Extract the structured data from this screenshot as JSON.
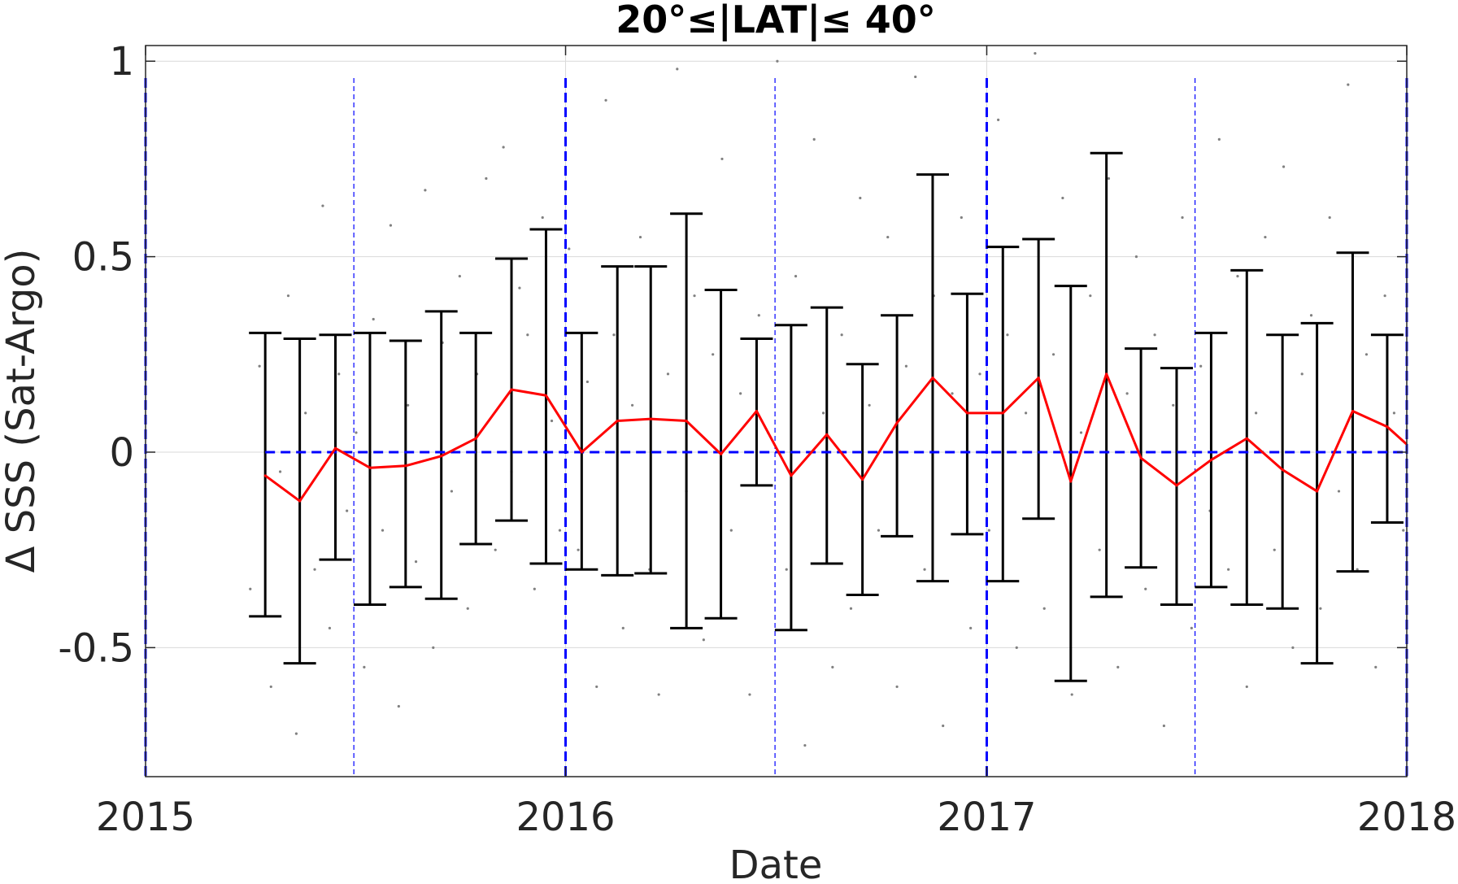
{
  "chart_data": {
    "type": "line",
    "title": "20°≤|LAT|≤ 40°",
    "xlabel": "Date",
    "ylabel": "Δ SSS (Sat-Argo)",
    "xlim": [
      "2015-01-01",
      "2018-01-01"
    ],
    "ylim": [
      -0.83,
      1.04
    ],
    "x_ticks": [
      "2015",
      "2016",
      "2017",
      "2018"
    ],
    "y_ticks": [
      "-0.5",
      "0",
      "0.5",
      "1"
    ],
    "grid": true,
    "colors": {
      "mean_line": "#ff0000",
      "error_bars": "#000000",
      "reference_lines": "#0000ff",
      "scatter": "#808080"
    },
    "zero_line": {
      "y": 0,
      "x_from": "2015-04-15",
      "x_to": "2018-01-01",
      "style": "dashed",
      "color": "#0000ff"
    },
    "year_boundaries": [
      "2015-01-01",
      "2016-01-01",
      "2017-01-01",
      "2018-01-01"
    ],
    "midyear_lines": [
      "2015-07-01",
      "2016-07-01",
      "2017-07-01"
    ],
    "series": [
      {
        "type": "line-with-errorbars",
        "x": [
          "2015-04-15",
          "2015-05-15",
          "2015-06-15",
          "2015-07-15",
          "2015-08-15",
          "2015-09-15",
          "2015-10-15",
          "2015-11-15",
          "2015-12-15",
          "2016-01-15",
          "2016-02-15",
          "2016-03-15",
          "2016-04-15",
          "2016-05-15",
          "2016-06-15",
          "2016-07-15",
          "2016-08-15",
          "2016-09-15",
          "2016-10-15",
          "2016-11-15",
          "2016-12-15",
          "2017-01-15",
          "2017-02-15",
          "2017-03-15",
          "2017-04-15",
          "2017-05-15",
          "2017-06-15",
          "2017-07-15",
          "2017-08-15",
          "2017-09-15",
          "2017-10-15",
          "2017-11-15",
          "2017-12-15"
        ],
        "y": [
          -0.06,
          -0.125,
          0.01,
          -0.04,
          -0.035,
          -0.01,
          0.035,
          0.16,
          0.145,
          0.0,
          0.08,
          0.085,
          0.08,
          -0.005,
          0.105,
          -0.06,
          0.045,
          -0.07,
          0.075,
          0.19,
          0.1,
          0.1,
          0.19,
          -0.075,
          0.2,
          -0.015,
          -0.085,
          -0.02,
          0.035,
          -0.045,
          -0.1,
          0.105,
          0.065
        ],
        "err_low": [
          -0.42,
          -0.54,
          -0.275,
          -0.39,
          -0.345,
          -0.375,
          -0.235,
          -0.175,
          -0.285,
          -0.3,
          -0.315,
          -0.31,
          -0.45,
          -0.425,
          -0.085,
          -0.455,
          -0.285,
          -0.365,
          -0.215,
          -0.33,
          -0.21,
          -0.33,
          -0.17,
          -0.585,
          -0.37,
          -0.295,
          -0.39,
          -0.345,
          -0.39,
          -0.4,
          -0.54,
          -0.305,
          -0.18
        ],
        "err_high": [
          0.305,
          0.29,
          0.3,
          0.305,
          0.285,
          0.36,
          0.305,
          0.495,
          0.57,
          0.305,
          0.475,
          0.475,
          0.61,
          0.415,
          0.29,
          0.325,
          0.37,
          0.225,
          0.35,
          0.71,
          0.405,
          0.525,
          0.545,
          0.425,
          0.765,
          0.265,
          0.215,
          0.305,
          0.465,
          0.3,
          0.33,
          0.51,
          0.3
        ]
      }
    ],
    "end_value": {
      "x": "2018-01-01",
      "y": 0.02
    },
    "scatter": {
      "x": [
        "2015-04-02",
        "2015-04-10",
        "2015-04-20",
        "2015-04-28",
        "2015-05-05",
        "2015-05-12",
        "2015-05-20",
        "2015-05-28",
        "2015-06-04",
        "2015-06-10",
        "2015-06-18",
        "2015-06-25",
        "2015-07-03",
        "2015-07-10",
        "2015-07-18",
        "2015-07-26",
        "2015-08-02",
        "2015-08-09",
        "2015-08-17",
        "2015-08-24",
        "2015-09-01",
        "2015-09-08",
        "2015-09-16",
        "2015-09-24",
        "2015-10-01",
        "2015-10-08",
        "2015-10-16",
        "2015-10-24",
        "2015-11-01",
        "2015-11-08",
        "2015-11-15",
        "2015-11-22",
        "2015-11-29",
        "2015-12-05",
        "2015-12-12",
        "2015-12-20",
        "2015-12-27",
        "2016-01-04",
        "2016-01-12",
        "2016-01-20",
        "2016-01-28",
        "2016-02-05",
        "2016-02-12",
        "2016-02-20",
        "2016-02-28",
        "2016-03-06",
        "2016-03-14",
        "2016-03-22",
        "2016-03-30",
        "2016-04-07",
        "2016-04-15",
        "2016-04-22",
        "2016-04-30",
        "2016-05-08",
        "2016-05-16",
        "2016-05-24",
        "2016-06-01",
        "2016-06-09",
        "2016-06-17",
        "2016-06-25",
        "2016-07-03",
        "2016-07-11",
        "2016-07-19",
        "2016-07-27",
        "2016-08-04",
        "2016-08-12",
        "2016-08-20",
        "2016-08-28",
        "2016-09-05",
        "2016-09-13",
        "2016-09-21",
        "2016-09-29",
        "2016-10-07",
        "2016-10-15",
        "2016-10-23",
        "2016-10-31",
        "2016-11-08",
        "2016-11-16",
        "2016-11-24",
        "2016-12-02",
        "2016-12-10",
        "2016-12-18",
        "2016-12-26",
        "2017-01-03",
        "2017-01-11",
        "2017-01-19",
        "2017-01-27",
        "2017-02-04",
        "2017-02-12",
        "2017-02-20",
        "2017-02-28",
        "2017-03-08",
        "2017-03-16",
        "2017-03-24",
        "2017-04-01",
        "2017-04-09",
        "2017-04-17",
        "2017-04-25",
        "2017-05-03",
        "2017-05-11",
        "2017-05-19",
        "2017-05-27",
        "2017-06-04",
        "2017-06-12",
        "2017-06-20",
        "2017-06-28",
        "2017-07-06",
        "2017-07-14",
        "2017-07-22",
        "2017-07-30",
        "2017-08-07",
        "2017-08-15",
        "2017-08-23",
        "2017-08-31",
        "2017-09-08",
        "2017-09-16",
        "2017-09-24",
        "2017-10-02",
        "2017-10-10",
        "2017-10-18",
        "2017-10-26",
        "2017-11-03",
        "2017-11-11",
        "2017-11-19",
        "2017-11-27",
        "2017-12-05",
        "2017-12-13",
        "2017-12-21",
        "2017-12-29"
      ],
      "y": [
        -0.35,
        0.22,
        -0.6,
        -0.05,
        0.4,
        -0.72,
        0.1,
        -0.3,
        0.63,
        -0.45,
        0.2,
        -0.15,
        0.05,
        -0.55,
        0.34,
        -0.2,
        0.58,
        -0.65,
        0.12,
        -0.28,
        0.67,
        -0.5,
        0.28,
        -0.1,
        0.45,
        -0.4,
        0.2,
        0.7,
        -0.25,
        0.78,
        -0.05,
        0.42,
        0.3,
        -0.35,
        0.6,
        0.08,
        -0.2,
        0.52,
        -0.25,
        0.18,
        -0.6,
        0.9,
        0.3,
        -0.45,
        0.12,
        0.55,
        -0.3,
        -0.62,
        0.2,
        0.98,
        -0.1,
        0.4,
        -0.48,
        0.25,
        0.75,
        -0.2,
        0.15,
        -0.62,
        0.35,
        0.05,
        1.0,
        -0.3,
        0.45,
        -0.75,
        0.8,
        0.1,
        -0.55,
        0.3,
        -0.4,
        0.65,
        0.12,
        -0.2,
        0.55,
        -0.6,
        0.22,
        0.96,
        -0.3,
        0.4,
        -0.7,
        0.15,
        0.6,
        -0.45,
        0.2,
        -0.2,
        0.85,
        0.3,
        -0.5,
        0.1,
        1.02,
        -0.4,
        0.25,
        0.65,
        -0.62,
        0.05,
        0.4,
        -0.25,
        0.7,
        -0.55,
        0.15,
        0.5,
        -0.35,
        0.3,
        -0.7,
        0.12,
        0.6,
        -0.45,
        0.22,
        -0.15,
        0.8,
        -0.3,
        0.45,
        -0.6,
        0.1,
        0.55,
        -0.25,
        0.73,
        -0.5,
        0.2,
        0.35,
        -0.4,
        0.6,
        -0.1,
        0.94,
        -0.3,
        0.25,
        -0.55,
        0.4,
        0.1,
        -0.2
      ]
    }
  }
}
